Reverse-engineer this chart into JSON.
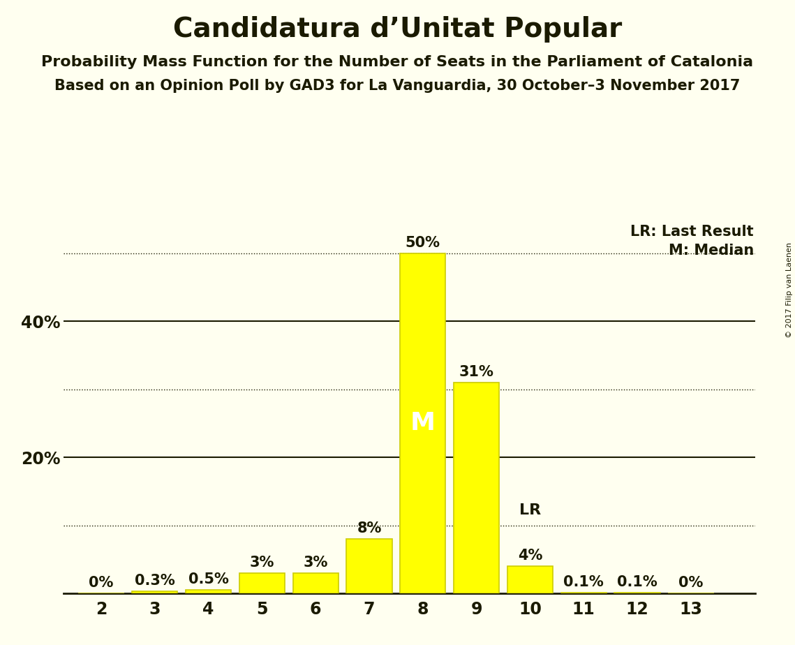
{
  "title": "Candidatura d’Unitat Popular",
  "subtitle1": "Probability Mass Function for the Number of Seats in the Parliament of Catalonia",
  "subtitle2": "Based on an Opinion Poll by GAD3 for La Vanguardia, 30 October–3 November 2017",
  "copyright": "© 2017 Filip van Laenen",
  "seats": [
    2,
    3,
    4,
    5,
    6,
    7,
    8,
    9,
    10,
    11,
    12,
    13
  ],
  "probabilities": [
    0.0,
    0.3,
    0.5,
    3.0,
    3.0,
    8.0,
    50.0,
    31.0,
    4.0,
    0.1,
    0.1,
    0.0
  ],
  "bar_color": "#FFFF00",
  "bar_edge_color": "#CCCC00",
  "background_color": "#FFFFF0",
  "text_color": "#1a1a00",
  "label_texts": [
    "0%",
    "0.3%",
    "0.5%",
    "3%",
    "3%",
    "8%",
    "50%",
    "31%",
    "4%",
    "0.1%",
    "0.1%",
    "0%"
  ],
  "median_seat": 8,
  "last_result_seat": 10,
  "dotted_lines": [
    10.0,
    30.0,
    50.0
  ],
  "solid_lines": [
    20.0,
    40.0
  ],
  "ylim": [
    0,
    55
  ],
  "legend_lr": "LR: Last Result",
  "legend_m": "M: Median",
  "median_label": "M",
  "lr_label": "LR"
}
